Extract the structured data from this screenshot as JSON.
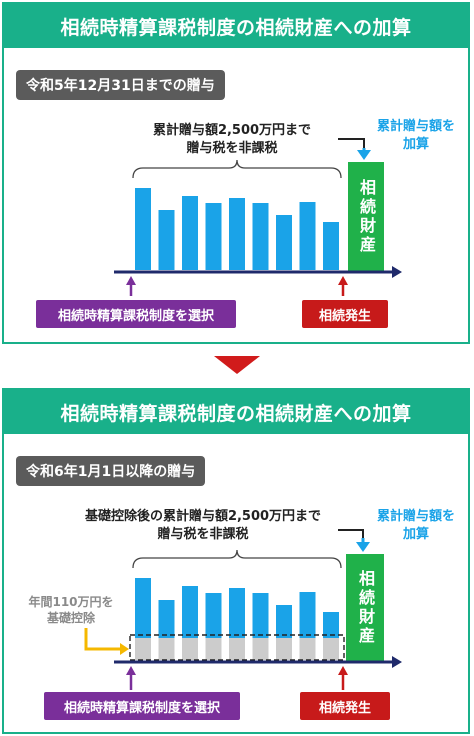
{
  "top": {
    "title": "相続時精算課税制度の相続財産への加算",
    "period": "令和5年12月31日までの贈与",
    "bracket_line1": "累計贈与額2,500万円まで",
    "bracket_line2": "贈与税を非課税",
    "total_line1": "累計贈与額を",
    "total_line2": "加算",
    "estate": "相続財産",
    "select_label": "相続時精算課税制度を選択",
    "inheritance_label": "相続発生"
  },
  "bottom": {
    "title": "相続時精算課税制度の相続財産への加算",
    "period": "令和6年1月1日以降の贈与",
    "bracket_line1": "基礎控除後の累計贈与額2,500万円まで",
    "bracket_line2": "贈与税を非課税",
    "total_line1": "累計贈与額を",
    "total_line2": "加算",
    "estate": "相続財産",
    "deduction_line1": "年間110万円を",
    "deduction_line2": "基礎控除",
    "select_label": "相続時精算課税制度を選択",
    "inheritance_label": "相続発生"
  },
  "colors": {
    "header_green": "#19b08a",
    "bar_blue": "#1aa3e8",
    "estate_green": "#20b14a",
    "axis_navy": "#1f2a6b",
    "purple": "#7a2f9a",
    "red": "#c71a1a",
    "down_arrow_red": "#d11b1b",
    "deduction_gray": "#cccccc",
    "pointer_yellow": "#f5b800"
  },
  "chart_data": [
    {
      "type": "bar",
      "values": [
        82,
        60,
        74,
        67,
        72,
        67,
        55,
        68,
        48
      ],
      "unit": "relative"
    },
    {
      "type": "bar",
      "values": [
        82,
        60,
        74,
        67,
        72,
        67,
        55,
        68,
        48
      ],
      "deducted_portion": [
        22,
        22,
        22,
        22,
        22,
        22,
        22,
        22,
        22
      ],
      "unit": "relative"
    }
  ]
}
